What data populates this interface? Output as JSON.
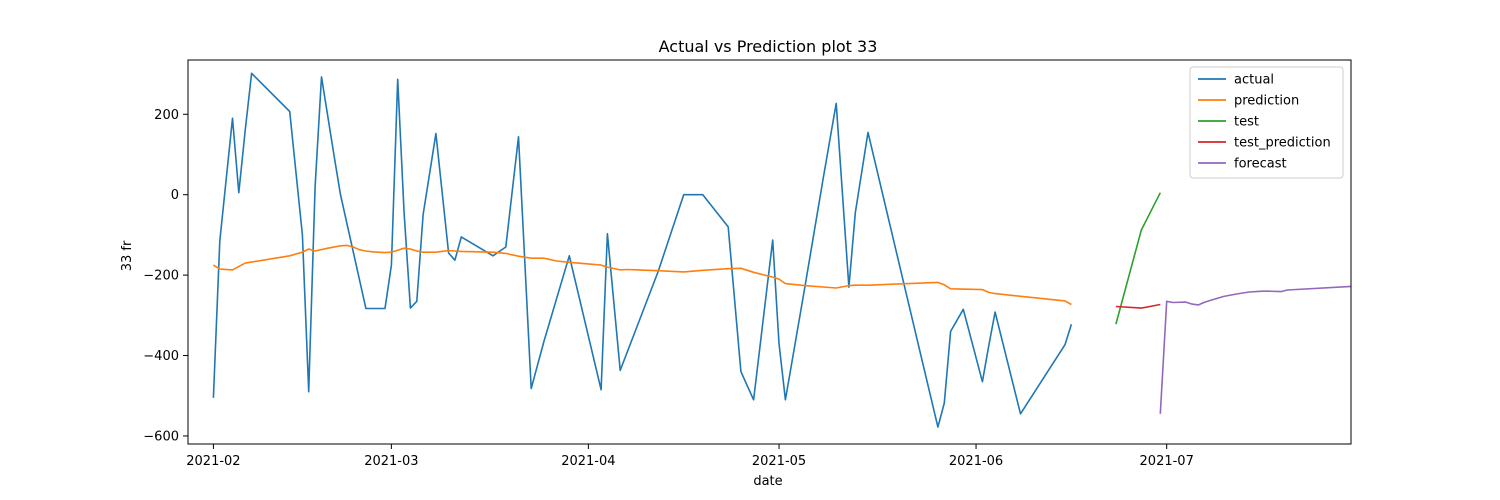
{
  "chart_data": {
    "type": "line",
    "title": "Actual vs Prediction plot 33",
    "xlabel": "date",
    "ylabel": "33 fr",
    "x_ticks": [
      "2021-02-01",
      "2021-03-01",
      "2021-04-01",
      "2021-05-01",
      "2021-06-01",
      "2021-07-01"
    ],
    "x_tick_labels": [
      "2021-02",
      "2021-03",
      "2021-04",
      "2021-05",
      "2021-06",
      "2021-07"
    ],
    "xlim": [
      "2021-01-28",
      "2021-07-30"
    ],
    "y_ticks": [
      200,
      0,
      -200,
      -400,
      -600
    ],
    "y_tick_labels": [
      "200",
      "0",
      "−200",
      "−400",
      "−600"
    ],
    "ylim": [
      -620,
      335
    ],
    "grid": false,
    "legend_position": "top-right",
    "series": [
      {
        "name": "actual",
        "color": "#1f77b4",
        "points": [
          [
            "2021-02-01",
            -505
          ],
          [
            "2021-02-02",
            -115
          ],
          [
            "2021-02-04",
            190
          ],
          [
            "2021-02-05",
            5
          ],
          [
            "2021-02-06",
            160
          ],
          [
            "2021-02-07",
            302
          ],
          [
            "2021-02-13",
            207
          ],
          [
            "2021-02-15",
            -100
          ],
          [
            "2021-02-16",
            -490
          ],
          [
            "2021-02-17",
            20
          ],
          [
            "2021-02-18",
            293
          ],
          [
            "2021-02-20",
            95
          ],
          [
            "2021-02-21",
            0
          ],
          [
            "2021-02-25",
            -283
          ],
          [
            "2021-02-26",
            -283
          ],
          [
            "2021-02-27",
            -283
          ],
          [
            "2021-02-28",
            -283
          ],
          [
            "2021-03-01",
            -175
          ],
          [
            "2021-03-02",
            287
          ],
          [
            "2021-03-03",
            -45
          ],
          [
            "2021-03-04",
            -282
          ],
          [
            "2021-03-05",
            -265
          ],
          [
            "2021-03-06",
            -50
          ],
          [
            "2021-03-08",
            152
          ],
          [
            "2021-03-10",
            -145
          ],
          [
            "2021-03-11",
            -163
          ],
          [
            "2021-03-12",
            -105
          ],
          [
            "2021-03-17",
            -152
          ],
          [
            "2021-03-19",
            -130
          ],
          [
            "2021-03-21",
            144
          ],
          [
            "2021-03-23",
            -482
          ],
          [
            "2021-03-25",
            -365
          ],
          [
            "2021-03-29",
            -152
          ],
          [
            "2021-04-03",
            -485
          ],
          [
            "2021-04-04",
            -97
          ],
          [
            "2021-04-06",
            -437
          ],
          [
            "2021-04-12",
            -190
          ],
          [
            "2021-04-16",
            0
          ],
          [
            "2021-04-19",
            0
          ],
          [
            "2021-04-23",
            -80
          ],
          [
            "2021-04-25",
            -440
          ],
          [
            "2021-04-27",
            -510
          ],
          [
            "2021-04-30",
            -113
          ],
          [
            "2021-05-01",
            -370
          ],
          [
            "2021-05-02",
            -510
          ],
          [
            "2021-05-05",
            -235
          ],
          [
            "2021-05-08",
            45
          ],
          [
            "2021-05-10",
            227
          ],
          [
            "2021-05-12",
            -230
          ],
          [
            "2021-05-13",
            -45
          ],
          [
            "2021-05-15",
            155
          ],
          [
            "2021-05-26",
            -578
          ],
          [
            "2021-05-27",
            -518
          ],
          [
            "2021-05-28",
            -340
          ],
          [
            "2021-05-30",
            -285
          ],
          [
            "2021-06-02",
            -465
          ],
          [
            "2021-06-03",
            -375
          ],
          [
            "2021-06-04",
            -292
          ],
          [
            "2021-06-08",
            -545
          ],
          [
            "2021-06-15",
            -373
          ],
          [
            "2021-06-16",
            -322
          ]
        ]
      },
      {
        "name": "prediction",
        "color": "#ff7f0e",
        "points": [
          [
            "2021-02-01",
            -175
          ],
          [
            "2021-02-02",
            -185
          ],
          [
            "2021-02-04",
            -187
          ],
          [
            "2021-02-06",
            -170
          ],
          [
            "2021-02-13",
            -152
          ],
          [
            "2021-02-15",
            -143
          ],
          [
            "2021-02-16",
            -135
          ],
          [
            "2021-02-17",
            -140
          ],
          [
            "2021-02-19",
            -133
          ],
          [
            "2021-02-21",
            -127
          ],
          [
            "2021-02-22",
            -126
          ],
          [
            "2021-02-23",
            -130
          ],
          [
            "2021-02-24",
            -137
          ],
          [
            "2021-02-25",
            -140
          ],
          [
            "2021-02-26",
            -142
          ],
          [
            "2021-02-27",
            -143
          ],
          [
            "2021-02-28",
            -144
          ],
          [
            "2021-03-01",
            -143
          ],
          [
            "2021-03-02",
            -138
          ],
          [
            "2021-03-03",
            -133
          ],
          [
            "2021-03-04",
            -135
          ],
          [
            "2021-03-05",
            -140
          ],
          [
            "2021-03-06",
            -143
          ],
          [
            "2021-03-08",
            -143
          ],
          [
            "2021-03-10",
            -139
          ],
          [
            "2021-03-11",
            -140
          ],
          [
            "2021-03-12",
            -141
          ],
          [
            "2021-03-17",
            -143
          ],
          [
            "2021-03-19",
            -146
          ],
          [
            "2021-03-21",
            -153
          ],
          [
            "2021-03-23",
            -158
          ],
          [
            "2021-03-25",
            -158
          ],
          [
            "2021-03-27",
            -165
          ],
          [
            "2021-03-29",
            -168
          ],
          [
            "2021-04-03",
            -175
          ],
          [
            "2021-04-04",
            -180
          ],
          [
            "2021-04-06",
            -187
          ],
          [
            "2021-04-07",
            -186
          ],
          [
            "2021-04-12",
            -189
          ],
          [
            "2021-04-16",
            -192
          ],
          [
            "2021-04-19",
            -188
          ],
          [
            "2021-04-23",
            -184
          ],
          [
            "2021-04-25",
            -183
          ],
          [
            "2021-04-27",
            -193
          ],
          [
            "2021-04-30",
            -205
          ],
          [
            "2021-05-01",
            -210
          ],
          [
            "2021-05-02",
            -221
          ],
          [
            "2021-05-05",
            -226
          ],
          [
            "2021-05-10",
            -232
          ],
          [
            "2021-05-12",
            -226
          ],
          [
            "2021-05-13",
            -225
          ],
          [
            "2021-05-15",
            -225
          ],
          [
            "2021-05-26",
            -218
          ],
          [
            "2021-05-27",
            -224
          ],
          [
            "2021-05-28",
            -234
          ],
          [
            "2021-06-02",
            -236
          ],
          [
            "2021-06-03",
            -243
          ],
          [
            "2021-06-04",
            -246
          ],
          [
            "2021-06-15",
            -264
          ],
          [
            "2021-06-16",
            -273
          ]
        ]
      },
      {
        "name": "test",
        "color": "#2ca02c",
        "points": [
          [
            "2021-06-23",
            -322
          ],
          [
            "2021-06-27",
            -88
          ],
          [
            "2021-06-30",
            5
          ]
        ]
      },
      {
        "name": "test_prediction",
        "color": "#d62728",
        "points": [
          [
            "2021-06-23",
            -278
          ],
          [
            "2021-06-27",
            -282
          ],
          [
            "2021-06-30",
            -273
          ]
        ]
      },
      {
        "name": "forecast",
        "color": "#9467bd",
        "points": [
          [
            "2021-06-30",
            -545
          ],
          [
            "2021-07-01",
            -265
          ],
          [
            "2021-07-02",
            -268
          ],
          [
            "2021-07-04",
            -267
          ],
          [
            "2021-07-05",
            -272
          ],
          [
            "2021-07-06",
            -274
          ],
          [
            "2021-07-07",
            -267
          ],
          [
            "2021-07-08",
            -262
          ],
          [
            "2021-07-10",
            -253
          ],
          [
            "2021-07-12",
            -247
          ],
          [
            "2021-07-14",
            -242
          ],
          [
            "2021-07-16",
            -240
          ],
          [
            "2021-07-17",
            -240
          ],
          [
            "2021-07-19",
            -241
          ],
          [
            "2021-07-20",
            -237
          ],
          [
            "2021-07-30",
            -228
          ]
        ]
      }
    ]
  }
}
